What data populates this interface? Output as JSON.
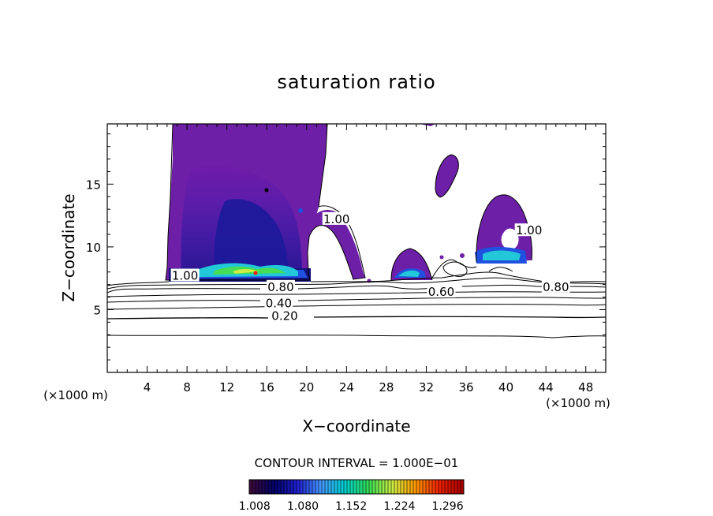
{
  "chart_data": {
    "type": "heatmap",
    "title": "saturation ratio",
    "xlabel": "X−coordinate",
    "ylabel": "Z−coordinate",
    "x_unit_left": "(×1000 m)",
    "x_unit_right": "(×1000 m)",
    "xlim": [
      0,
      50
    ],
    "ylim": [
      0,
      19.8
    ],
    "x_ticks": [
      4,
      8,
      12,
      16,
      20,
      24,
      28,
      32,
      36,
      40,
      44,
      48
    ],
    "y_ticks": [
      5,
      10,
      15
    ],
    "contour_interval_text": "CONTOUR INTERVAL = 1.000E−01",
    "contour_labels": [
      {
        "text": "0.20",
        "x": 17.8,
        "z": 4.5
      },
      {
        "text": "0.40",
        "x": 17.2,
        "z": 5.5
      },
      {
        "text": "0.60",
        "x": 33.5,
        "z": 6.4
      },
      {
        "text": "0.80",
        "x": 17.4,
        "z": 6.8
      },
      {
        "text": "0.80",
        "x": 45.0,
        "z": 6.8
      },
      {
        "text": "1.00",
        "x": 7.8,
        "z": 7.7
      },
      {
        "text": "1.00",
        "x": 23.0,
        "z": 12.2
      },
      {
        "text": "1.00",
        "x": 42.3,
        "z": 11.3
      }
    ],
    "colorbar": {
      "ticks": [
        "1.008",
        "1.080",
        "1.152",
        "1.224",
        "1.296"
      ],
      "range": [
        1.0,
        1.32
      ],
      "colors": [
        "#3a0a38",
        "#000066",
        "#1f1fd0",
        "#4499ff",
        "#00d0d0",
        "#33dd55",
        "#ccee44",
        "#ff9900",
        "#ee2200",
        "#aa0000"
      ]
    },
    "regions": [
      {
        "name": "supersaturated-plume-left",
        "value_range": [
          1.0,
          1.3
        ],
        "x_range": [
          5.8,
          20.5
        ],
        "z_range": [
          7.4,
          19.8
        ]
      },
      {
        "name": "supersaturated-cloud-mid",
        "value_range": [
          1.0,
          1.15
        ],
        "x_range": [
          28.5,
          32.5
        ],
        "z_range": [
          7.5,
          10.0
        ]
      },
      {
        "name": "supersaturated-cloud-upper",
        "value_range": [
          1.0,
          1.02
        ],
        "x_range": [
          32.8,
          35.5
        ],
        "z_range": [
          13.9,
          17.5
        ]
      },
      {
        "name": "supersaturated-cloud-right",
        "value_range": [
          1.0,
          1.15
        ],
        "x_range": [
          37.3,
          42.6
        ],
        "z_range": [
          8.5,
          14.0
        ]
      }
    ]
  }
}
